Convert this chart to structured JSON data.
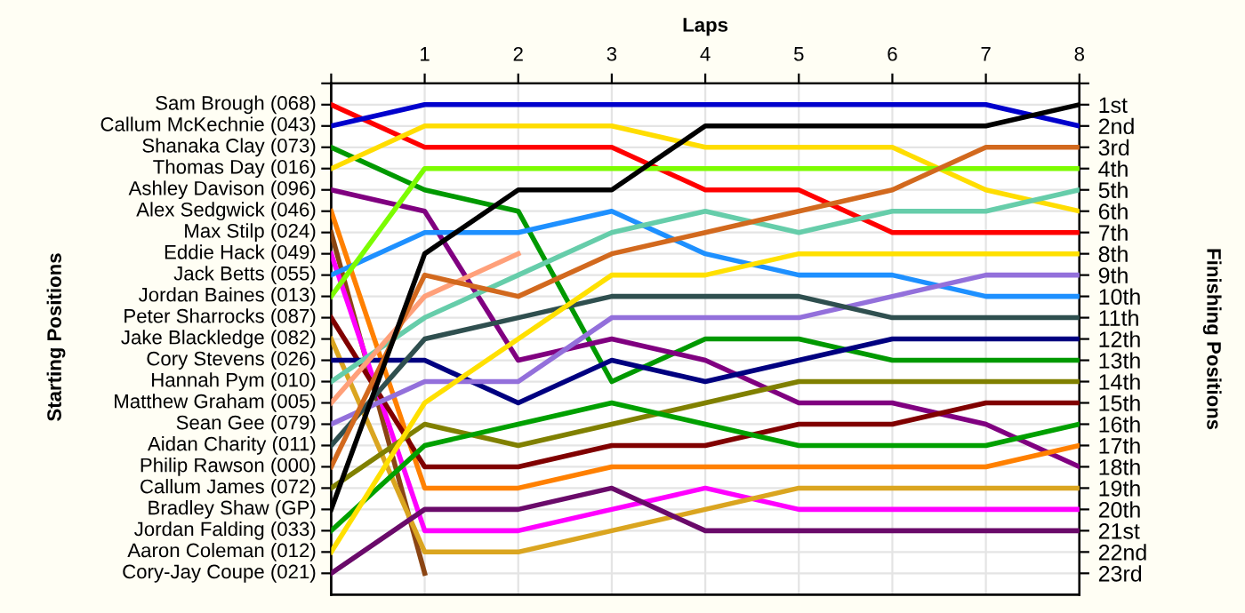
{
  "chart_data": {
    "type": "line",
    "xlabel": "Laps",
    "y2label": "Finishing Positions",
    "x": [
      0,
      1,
      2,
      3,
      4,
      5,
      6,
      7,
      8
    ],
    "xlim": [
      0,
      8
    ],
    "xticks": [
      {
        "value": 0,
        "label": null
      },
      1,
      2,
      3,
      4,
      5,
      6,
      7,
      8
    ],
    "annotations": [
      "Starting Positions",
      "Sam Brough (068)",
      "Callum McKechnie (043)",
      "Shanaka Clay (073)",
      "Thomas Day (016)",
      "Ashley Davison (096)",
      "Alex Sedgwick (046)",
      "Max Stilp (024)",
      "Eddie Hack (049)",
      "Jack Betts (055)",
      "Jordan Baines (013)",
      "Peter Sharrocks (087)",
      "Jake Blackledge (082)",
      "Cory Stevens (026)",
      "Hannah Pym (010)",
      "Matthew Graham (005)",
      "Sean Gee (079)",
      "Aidan Charity (011)",
      "Philip Rawson (000)",
      "Callum James (072)",
      "Bradley Shaw (GP)",
      "Jordan Falding (033)",
      "Aaron Coleman (012)",
      "Cory-Jay Coupe (021)"
    ],
    "y2lim": [
      24,
      0
    ],
    "y2ticks": [
      {
        "value": 0,
        "label": null
      },
      {
        "value": 1,
        "label": "1st"
      },
      {
        "value": 2,
        "label": "2nd"
      },
      {
        "value": 3,
        "label": "3rd"
      },
      {
        "value": 4,
        "label": "4th"
      },
      {
        "value": 5,
        "label": "5th"
      },
      {
        "value": 6,
        "label": "6th"
      },
      {
        "value": 7,
        "label": "7th"
      },
      {
        "value": 8,
        "label": "8th"
      },
      {
        "value": 9,
        "label": "9th"
      },
      {
        "value": 10,
        "label": "10th"
      },
      {
        "value": 11,
        "label": "11th"
      },
      {
        "value": 12,
        "label": "12th"
      },
      {
        "value": 13,
        "label": "13th"
      },
      {
        "value": 14,
        "label": "14th"
      },
      {
        "value": 15,
        "label": "15th"
      },
      {
        "value": 16,
        "label": "16th"
      },
      {
        "value": 17,
        "label": "17th"
      },
      {
        "value": 18,
        "label": "18th"
      },
      {
        "value": 19,
        "label": "19th"
      },
      {
        "value": 20,
        "label": "20th"
      },
      {
        "value": 21,
        "label": "21st"
      },
      {
        "value": 22,
        "label": "22nd"
      },
      {
        "value": 23,
        "label": "23rd"
      }
    ],
    "grid": true,
    "marker": "none",
    "line_style": "solid",
    "series": [
      {
        "axis": "y2",
        "color": "#ff0000",
        "values": [
          1,
          3,
          3,
          3,
          5,
          5,
          7,
          7,
          7
        ]
      },
      {
        "axis": "y2",
        "color": "#0000cc",
        "values": [
          2,
          1,
          1,
          1,
          1,
          1,
          1,
          1,
          2
        ]
      },
      {
        "axis": "y2",
        "color": "#009900",
        "values": [
          3,
          5,
          6,
          14,
          12,
          12,
          13,
          13,
          13
        ]
      },
      {
        "axis": "y2",
        "color": "#ffdd00",
        "values": [
          4,
          2,
          2,
          2,
          3,
          3,
          3,
          5,
          6
        ]
      },
      {
        "axis": "y2",
        "color": "#800080",
        "values": [
          5,
          6,
          13,
          12,
          13,
          15,
          15,
          16,
          18
        ]
      },
      {
        "axis": "y2",
        "color": "#ff8000",
        "values": [
          6,
          19,
          19,
          18,
          18,
          18,
          18,
          18,
          17
        ]
      },
      {
        "axis": "y2",
        "color": "#8b4513",
        "values": [
          7,
          23,
          null,
          null,
          null,
          null,
          null,
          null,
          null
        ]
      },
      {
        "axis": "y2",
        "color": "#ff00ff",
        "values": [
          8,
          21,
          21,
          20,
          19,
          20,
          20,
          20,
          20
        ]
      },
      {
        "axis": "y2",
        "color": "#1e90ff",
        "values": [
          9,
          7,
          7,
          6,
          8,
          9,
          9,
          10,
          10
        ]
      },
      {
        "axis": "y2",
        "color": "#7cfc00",
        "values": [
          10,
          4,
          4,
          4,
          4,
          4,
          4,
          4,
          4
        ]
      },
      {
        "axis": "y2",
        "color": "#800000",
        "values": [
          11,
          18,
          18,
          17,
          17,
          16,
          16,
          15,
          15
        ]
      },
      {
        "axis": "y2",
        "color": "#daa520",
        "values": [
          12,
          22,
          22,
          21,
          20,
          19,
          19,
          19,
          19
        ]
      },
      {
        "axis": "y2",
        "color": "#000080",
        "values": [
          13,
          13,
          15,
          13,
          14,
          13,
          12,
          12,
          12
        ]
      },
      {
        "axis": "y2",
        "color": "#66cdaa",
        "values": [
          14,
          11,
          9,
          7,
          6,
          7,
          6,
          6,
          5
        ]
      },
      {
        "axis": "y2",
        "color": "#ffa07a",
        "values": [
          15,
          10,
          8,
          null,
          null,
          null,
          null,
          null,
          null
        ]
      },
      {
        "axis": "y2",
        "color": "#9370db",
        "values": [
          16,
          14,
          14,
          11,
          11,
          11,
          10,
          9,
          9
        ]
      },
      {
        "axis": "y2",
        "color": "#2f4f4f",
        "values": [
          17,
          12,
          11,
          10,
          10,
          10,
          11,
          11,
          11
        ]
      },
      {
        "axis": "y2",
        "color": "#d2691e",
        "values": [
          18,
          9,
          10,
          8,
          7,
          6,
          5,
          3,
          3
        ]
      },
      {
        "axis": "y2",
        "color": "#808000",
        "values": [
          19,
          16,
          17,
          16,
          15,
          14,
          14,
          14,
          14
        ]
      },
      {
        "axis": "y2",
        "color": "#000000",
        "values": [
          20,
          8,
          5,
          5,
          2,
          2,
          2,
          2,
          1
        ]
      },
      {
        "axis": "y2",
        "color": "#00a000",
        "values": [
          21,
          17,
          16,
          15,
          16,
          17,
          17,
          17,
          16
        ]
      },
      {
        "axis": "y2",
        "color": "#ffe000",
        "values": [
          22,
          15,
          12,
          9,
          9,
          8,
          8,
          8,
          8
        ]
      },
      {
        "axis": "y2",
        "color": "#6a0a6a",
        "values": [
          23,
          20,
          20,
          19,
          21,
          21,
          21,
          21,
          21
        ]
      }
    ]
  }
}
